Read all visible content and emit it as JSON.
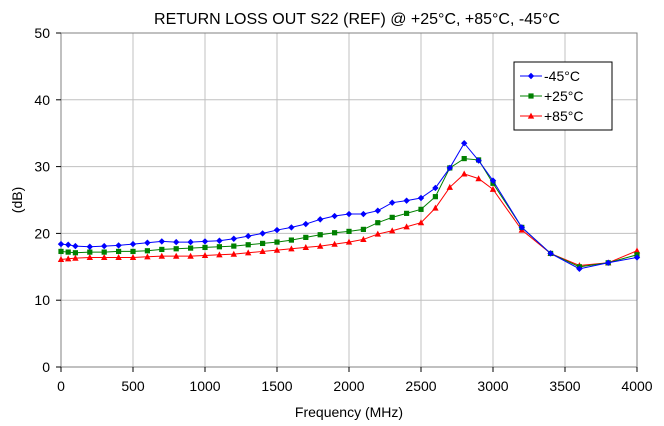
{
  "chart_data": {
    "type": "line",
    "title": "RETURN LOSS OUT S22 (REF) @ +25°C, +85°C, -45°C",
    "xlabel": "Frequency (MHz)",
    "ylabel": "(dB)",
    "xlim": [
      0,
      4000
    ],
    "ylim": [
      0,
      50
    ],
    "xticks": [
      0,
      500,
      1000,
      1500,
      2000,
      2500,
      3000,
      3500,
      4000
    ],
    "yticks": [
      0,
      10,
      20,
      30,
      40,
      50
    ],
    "grid": true,
    "legend_position": "top-right",
    "series": [
      {
        "name": "-45°C",
        "color": "#0000ff",
        "marker": "diamond",
        "x": [
          0,
          50,
          100,
          200,
          300,
          400,
          500,
          600,
          700,
          800,
          900,
          1000,
          1100,
          1200,
          1300,
          1400,
          1500,
          1600,
          1700,
          1800,
          1900,
          2000,
          2100,
          2200,
          2300,
          2400,
          2500,
          2600,
          2700,
          2800,
          2900,
          3000,
          3200,
          3400,
          3600,
          3800,
          4000
        ],
        "y": [
          18.4,
          18.3,
          18.1,
          18.0,
          18.1,
          18.2,
          18.4,
          18.6,
          18.8,
          18.7,
          18.7,
          18.8,
          18.9,
          19.2,
          19.6,
          20.0,
          20.5,
          20.9,
          21.4,
          22.1,
          22.6,
          22.9,
          22.9,
          23.4,
          24.6,
          24.9,
          25.3,
          26.8,
          29.8,
          33.5,
          30.9,
          27.9,
          20.9,
          17.0,
          14.7,
          15.6,
          16.4
        ]
      },
      {
        "name": "+25°C",
        "color": "#008000",
        "marker": "square",
        "x": [
          0,
          50,
          100,
          200,
          300,
          400,
          500,
          600,
          700,
          800,
          900,
          1000,
          1100,
          1200,
          1300,
          1400,
          1500,
          1600,
          1700,
          1800,
          1900,
          2000,
          2100,
          2200,
          2300,
          2400,
          2500,
          2600,
          2700,
          2800,
          2900,
          3000,
          3200,
          3400,
          3600,
          3800,
          4000
        ],
        "y": [
          17.3,
          17.2,
          17.1,
          17.2,
          17.2,
          17.3,
          17.3,
          17.4,
          17.6,
          17.7,
          17.8,
          17.9,
          18.0,
          18.1,
          18.3,
          18.5,
          18.7,
          19.0,
          19.4,
          19.8,
          20.1,
          20.3,
          20.6,
          21.6,
          22.4,
          23.0,
          23.6,
          25.5,
          29.8,
          31.2,
          31.0,
          27.5,
          20.9,
          17.0,
          15.0,
          15.6,
          16.8
        ]
      },
      {
        "name": "+85°C",
        "color": "#ff0000",
        "marker": "triangle",
        "x": [
          0,
          50,
          100,
          200,
          300,
          400,
          500,
          600,
          700,
          800,
          900,
          1000,
          1100,
          1200,
          1300,
          1400,
          1500,
          1600,
          1700,
          1800,
          1900,
          2000,
          2100,
          2200,
          2300,
          2400,
          2500,
          2600,
          2700,
          2800,
          2900,
          3000,
          3200,
          3400,
          3600,
          3800,
          4000
        ],
        "y": [
          16.1,
          16.2,
          16.3,
          16.4,
          16.4,
          16.4,
          16.4,
          16.5,
          16.6,
          16.6,
          16.6,
          16.7,
          16.8,
          16.9,
          17.1,
          17.3,
          17.5,
          17.7,
          17.9,
          18.1,
          18.4,
          18.7,
          19.1,
          19.9,
          20.4,
          21.0,
          21.6,
          23.8,
          26.9,
          28.9,
          28.2,
          26.6,
          20.5,
          17.0,
          15.2,
          15.6,
          17.4
        ]
      }
    ]
  }
}
